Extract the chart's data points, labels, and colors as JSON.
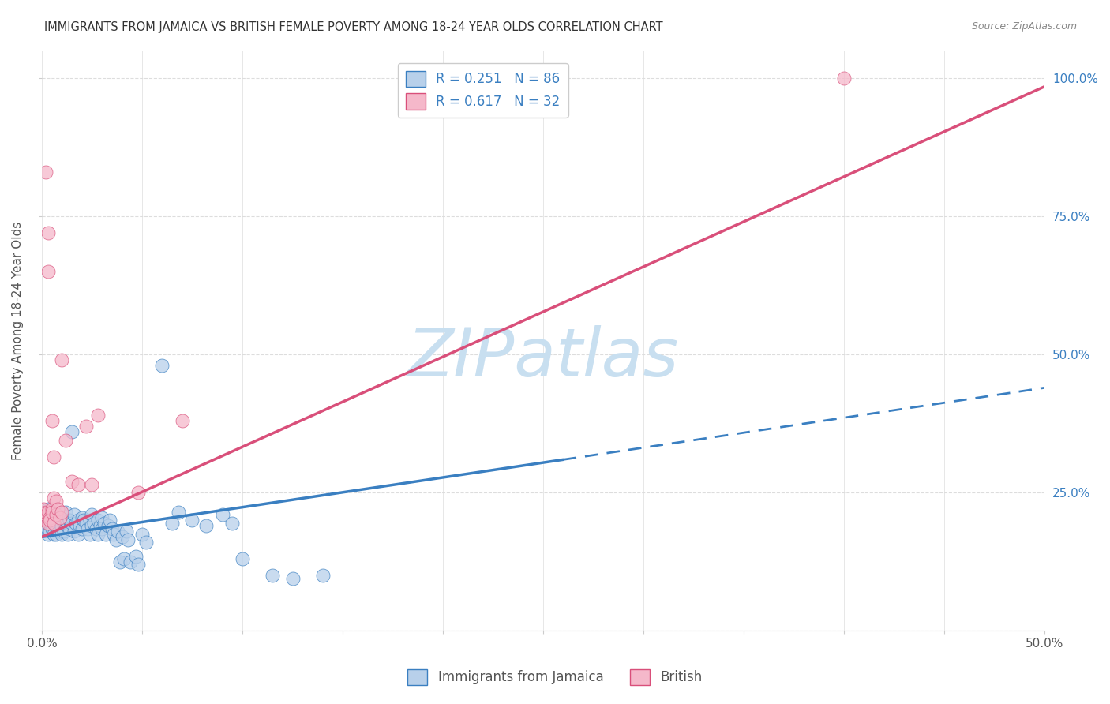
{
  "title": "IMMIGRANTS FROM JAMAICA VS BRITISH FEMALE POVERTY AMONG 18-24 YEAR OLDS CORRELATION CHART",
  "source": "Source: ZipAtlas.com",
  "ylabel": "Female Poverty Among 18-24 Year Olds",
  "yticks": [
    0.0,
    0.25,
    0.5,
    0.75,
    1.0
  ],
  "ytick_labels": [
    "",
    "25.0%",
    "50.0%",
    "75.0%",
    "100.0%"
  ],
  "xlim": [
    0.0,
    0.5
  ],
  "ylim": [
    0.0,
    1.05
  ],
  "color_blue": "#b8d0ea",
  "color_pink": "#f5b8ca",
  "line_color_blue": "#3a7fc1",
  "line_color_pink": "#d94f7a",
  "watermark": "ZIPatlas",
  "watermark_color": "#c8dff0",
  "blue_scatter": [
    [
      0.001,
      0.195
    ],
    [
      0.002,
      0.21
    ],
    [
      0.002,
      0.185
    ],
    [
      0.003,
      0.2
    ],
    [
      0.003,
      0.175
    ],
    [
      0.003,
      0.22
    ],
    [
      0.004,
      0.195
    ],
    [
      0.004,
      0.18
    ],
    [
      0.004,
      0.21
    ],
    [
      0.005,
      0.2
    ],
    [
      0.005,
      0.185
    ],
    [
      0.005,
      0.215
    ],
    [
      0.006,
      0.195
    ],
    [
      0.006,
      0.175
    ],
    [
      0.006,
      0.205
    ],
    [
      0.007,
      0.19
    ],
    [
      0.007,
      0.2
    ],
    [
      0.007,
      0.175
    ],
    [
      0.008,
      0.21
    ],
    [
      0.008,
      0.185
    ],
    [
      0.008,
      0.195
    ],
    [
      0.009,
      0.2
    ],
    [
      0.009,
      0.18
    ],
    [
      0.01,
      0.19
    ],
    [
      0.01,
      0.21
    ],
    [
      0.01,
      0.175
    ],
    [
      0.011,
      0.195
    ],
    [
      0.011,
      0.18
    ],
    [
      0.012,
      0.2
    ],
    [
      0.012,
      0.215
    ],
    [
      0.013,
      0.195
    ],
    [
      0.013,
      0.175
    ],
    [
      0.014,
      0.2
    ],
    [
      0.014,
      0.185
    ],
    [
      0.015,
      0.36
    ],
    [
      0.015,
      0.195
    ],
    [
      0.016,
      0.21
    ],
    [
      0.016,
      0.18
    ],
    [
      0.017,
      0.195
    ],
    [
      0.018,
      0.2
    ],
    [
      0.018,
      0.175
    ],
    [
      0.019,
      0.19
    ],
    [
      0.02,
      0.205
    ],
    [
      0.02,
      0.185
    ],
    [
      0.021,
      0.2
    ],
    [
      0.022,
      0.195
    ],
    [
      0.023,
      0.185
    ],
    [
      0.024,
      0.2
    ],
    [
      0.024,
      0.175
    ],
    [
      0.025,
      0.19
    ],
    [
      0.025,
      0.21
    ],
    [
      0.026,
      0.195
    ],
    [
      0.027,
      0.185
    ],
    [
      0.028,
      0.2
    ],
    [
      0.028,
      0.175
    ],
    [
      0.029,
      0.19
    ],
    [
      0.03,
      0.205
    ],
    [
      0.03,
      0.185
    ],
    [
      0.031,
      0.195
    ],
    [
      0.032,
      0.175
    ],
    [
      0.033,
      0.19
    ],
    [
      0.034,
      0.2
    ],
    [
      0.035,
      0.185
    ],
    [
      0.036,
      0.175
    ],
    [
      0.037,
      0.165
    ],
    [
      0.038,
      0.18
    ],
    [
      0.039,
      0.125
    ],
    [
      0.04,
      0.17
    ],
    [
      0.041,
      0.13
    ],
    [
      0.042,
      0.18
    ],
    [
      0.043,
      0.165
    ],
    [
      0.044,
      0.125
    ],
    [
      0.047,
      0.135
    ],
    [
      0.048,
      0.12
    ],
    [
      0.05,
      0.175
    ],
    [
      0.052,
      0.16
    ],
    [
      0.06,
      0.48
    ],
    [
      0.065,
      0.195
    ],
    [
      0.068,
      0.215
    ],
    [
      0.075,
      0.2
    ],
    [
      0.082,
      0.19
    ],
    [
      0.09,
      0.21
    ],
    [
      0.095,
      0.195
    ],
    [
      0.1,
      0.13
    ],
    [
      0.115,
      0.1
    ],
    [
      0.125,
      0.095
    ],
    [
      0.14,
      0.1
    ]
  ],
  "pink_scatter": [
    [
      0.001,
      0.2
    ],
    [
      0.001,
      0.22
    ],
    [
      0.002,
      0.21
    ],
    [
      0.002,
      0.215
    ],
    [
      0.002,
      0.83
    ],
    [
      0.003,
      0.195
    ],
    [
      0.003,
      0.215
    ],
    [
      0.003,
      0.72
    ],
    [
      0.003,
      0.65
    ],
    [
      0.004,
      0.205
    ],
    [
      0.004,
      0.2
    ],
    [
      0.005,
      0.22
    ],
    [
      0.005,
      0.215
    ],
    [
      0.005,
      0.38
    ],
    [
      0.006,
      0.195
    ],
    [
      0.006,
      0.24
    ],
    [
      0.006,
      0.315
    ],
    [
      0.007,
      0.21
    ],
    [
      0.007,
      0.235
    ],
    [
      0.008,
      0.22
    ],
    [
      0.009,
      0.205
    ],
    [
      0.01,
      0.215
    ],
    [
      0.01,
      0.49
    ],
    [
      0.012,
      0.345
    ],
    [
      0.015,
      0.27
    ],
    [
      0.018,
      0.265
    ],
    [
      0.022,
      0.37
    ],
    [
      0.025,
      0.265
    ],
    [
      0.028,
      0.39
    ],
    [
      0.048,
      0.25
    ],
    [
      0.07,
      0.38
    ],
    [
      0.4,
      1.0
    ]
  ],
  "blue_line_solid": [
    [
      0.0,
      0.17
    ],
    [
      0.26,
      0.31
    ]
  ],
  "blue_line_dashed": [
    [
      0.26,
      0.31
    ],
    [
      0.5,
      0.44
    ]
  ],
  "pink_line": [
    [
      0.0,
      0.17
    ],
    [
      0.5,
      0.985
    ]
  ],
  "bg_color": "#ffffff",
  "grid_color": "#dddddd"
}
